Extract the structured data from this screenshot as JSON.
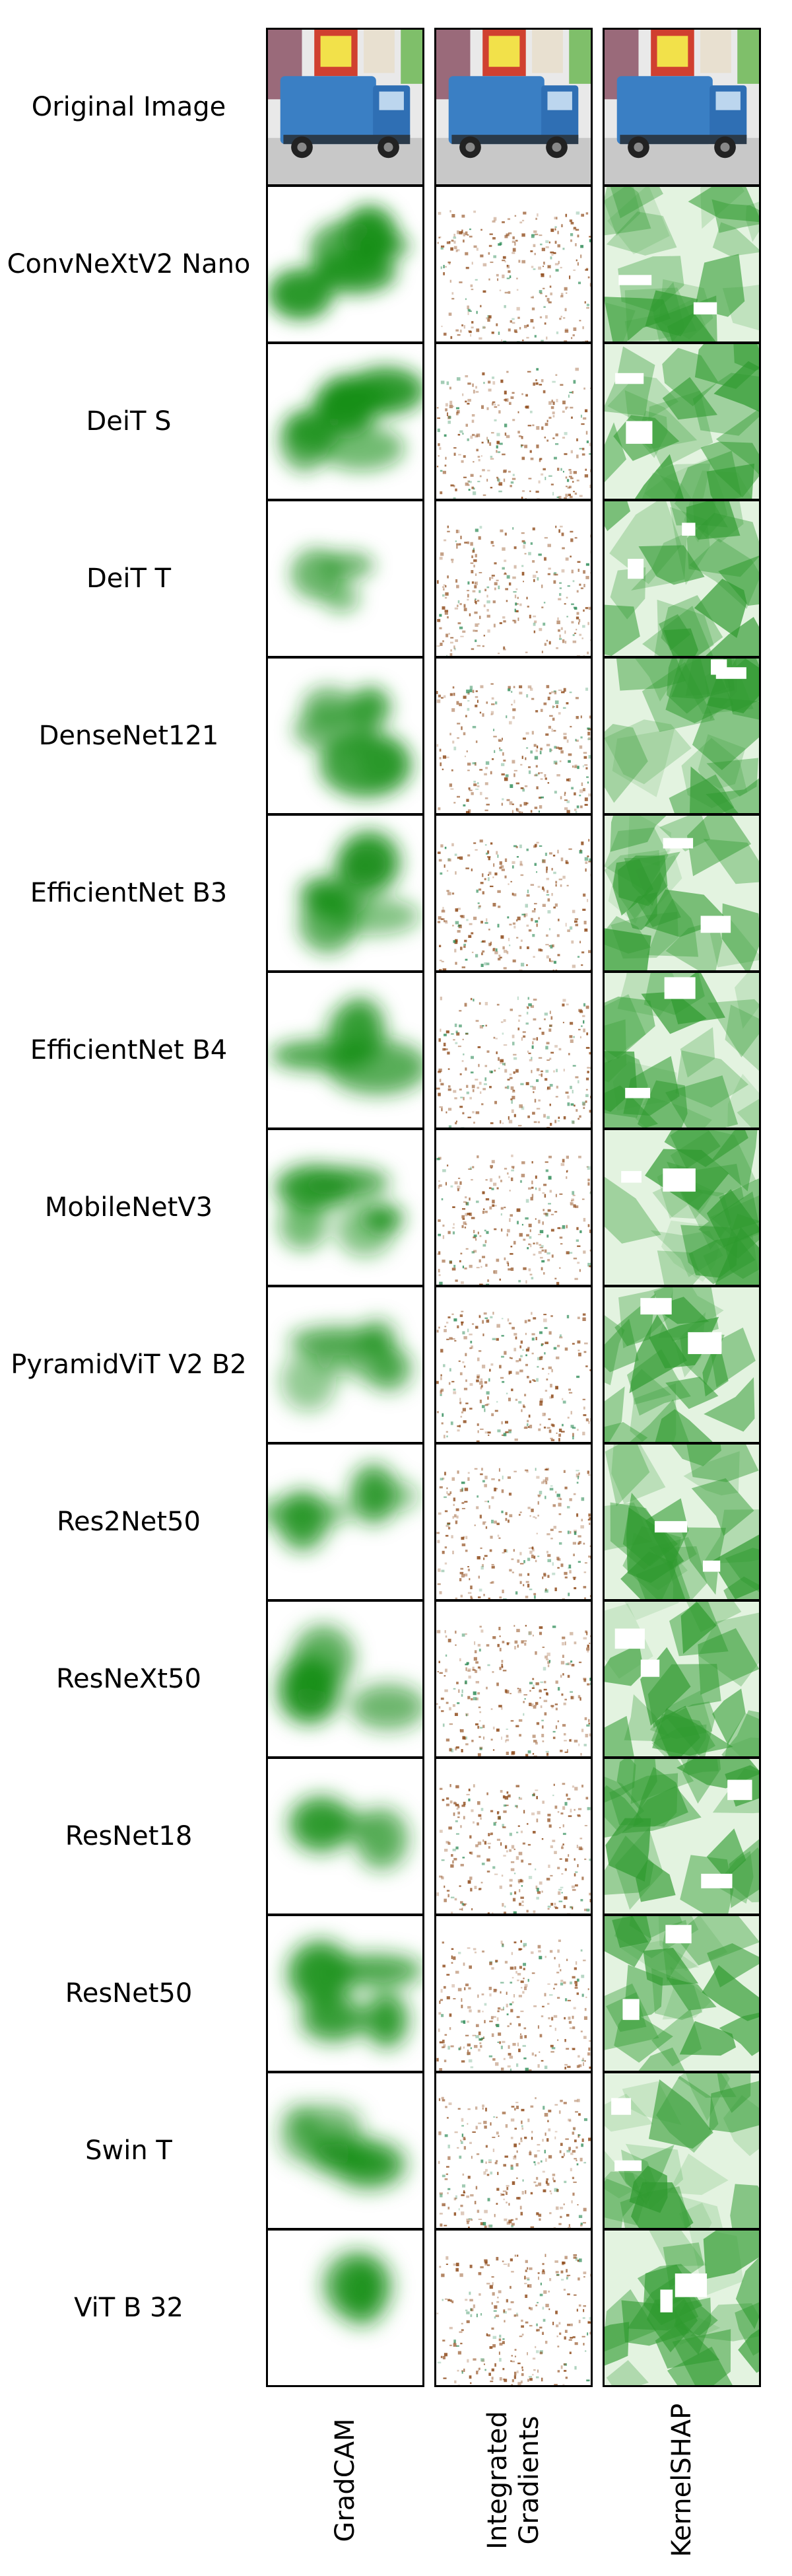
{
  "rows": [
    {
      "label": "Original Image",
      "type": "original"
    },
    {
      "label": "ConvNeXtV2 Nano",
      "type": "model"
    },
    {
      "label": "DeiT S",
      "type": "model"
    },
    {
      "label": "DeiT T",
      "type": "model"
    },
    {
      "label": "DenseNet121",
      "type": "model"
    },
    {
      "label": "EfficientNet B3",
      "type": "model"
    },
    {
      "label": "EfficientNet B4",
      "type": "model"
    },
    {
      "label": "MobileNetV3",
      "type": "model"
    },
    {
      "label": "PyramidViT V2 B2",
      "type": "model"
    },
    {
      "label": "Res2Net50",
      "type": "model"
    },
    {
      "label": "ResNeXt50",
      "type": "model"
    },
    {
      "label": "ResNet18",
      "type": "model"
    },
    {
      "label": "ResNet50",
      "type": "model"
    },
    {
      "label": "Swin T",
      "type": "model"
    },
    {
      "label": "ViT B 32",
      "type": "model"
    }
  ],
  "columns": [
    {
      "label_lines": [
        "GradCAM"
      ],
      "method": "gradcam"
    },
    {
      "label_lines": [
        "Integrated",
        "Gradients"
      ],
      "method": "ig"
    },
    {
      "label_lines": [
        "KernelSHAP"
      ],
      "method": "kernelshap"
    }
  ],
  "colors": {
    "gradcam": "#1a8f1a",
    "ig_positive": "#8b4513",
    "ig_negative": "#2e8b57",
    "kernelshap": "#2f9a2f",
    "truck_body": "#3a7fc4",
    "road": "#c8c8c8"
  }
}
